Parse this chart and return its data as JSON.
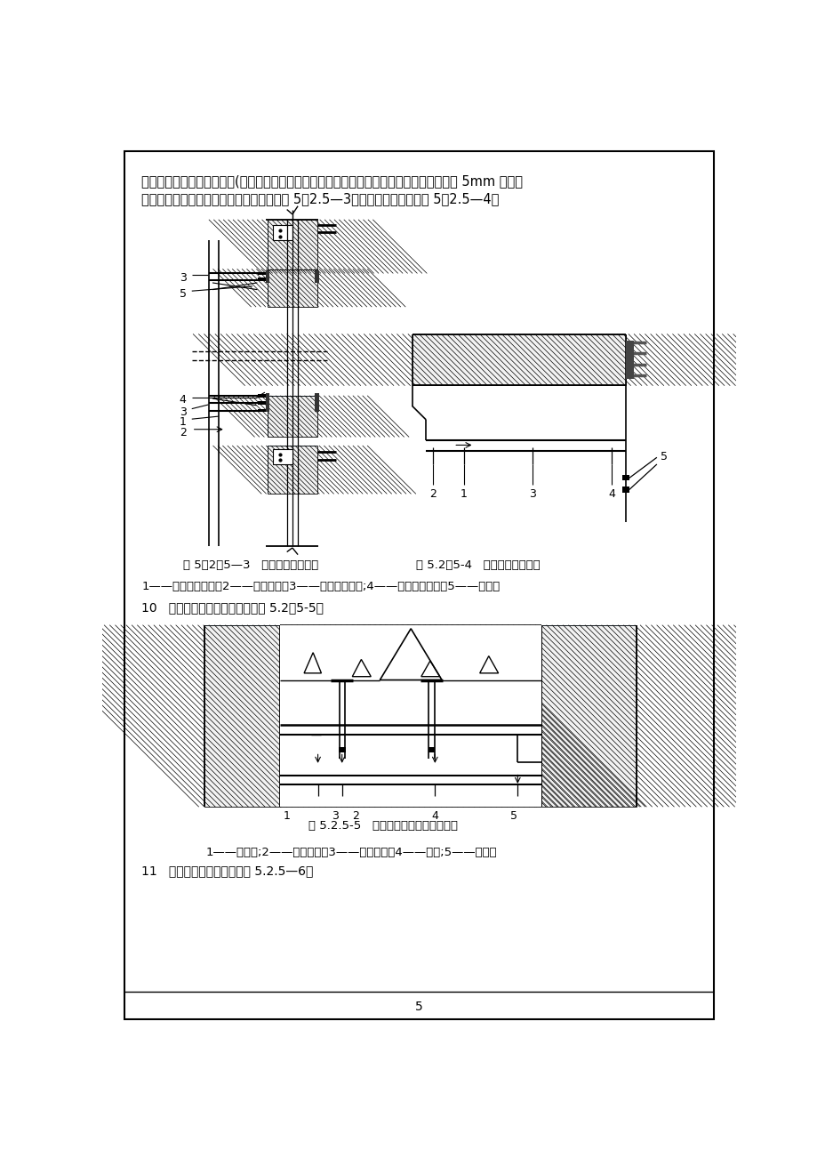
{
  "bg_color": "#ffffff",
  "text_color": "#000000",
  "line_color": "#000000",
  "page_width": 9.2,
  "page_height": 13.02,
  "para1": "向龙骨上）、附加竖向龙骨(用角码与预埋件连接），转角埃特板板间及埃特板与窗框间均留 5mm 缝隙，",
  "para2": "用聚氧酯密封胶密封，窗洞口竖向示意见图 5。2.5—3、窗洞口横向示意见图 5。2.5—4。",
  "caption1": "图 5。2。5—3   窗洞口竖向示意图",
  "caption2": "图 5.2。5-4   窗洞口横向示意图",
  "legend1": "1——竖向受力龙骨；2——横向龙骨；3——附加横向龙骨;4——附加竖向龙骨；5——密封胶",
  "item10": "10   与其它幕墙交接构造做法见图 5.2。5-5。",
  "caption3": "图 5.2.5-5   与其它幕墙交接构造示意图",
  "legend2": "1——埃特板;2——竖向龙骨；3——横向龙骨；4——接缝;5——铝型材",
  "item11": "11   埃特板转角构造做法见图 5.2.5—6。",
  "hatch_color": "#000000",
  "fill_light": "#f2f2f2"
}
